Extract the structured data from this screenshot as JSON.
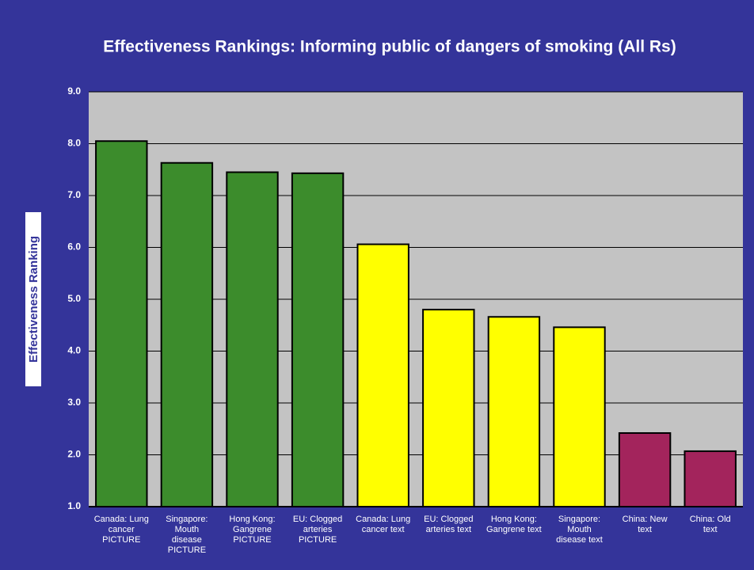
{
  "chart_data": {
    "type": "bar",
    "title": "Effectiveness Rankings: Informing public of dangers of smoking  (All Rs)",
    "y_label": "Effectiveness Ranking",
    "categories": [
      "Canada: Lung cancer PICTURE",
      "Singapore: Mouth disease PICTURE",
      "Hong Kong: Gangrene PICTURE",
      "EU: Clogged arteries PICTURE",
      "Canada: Lung cancer text",
      "EU: Clogged arteries text",
      "Hong Kong: Gangrene text",
      "Singapore: Mouth disease text",
      "China: New text",
      "China: Old text"
    ],
    "values": [
      8.05,
      7.63,
      7.45,
      7.43,
      6.06,
      4.8,
      4.66,
      4.46,
      2.42,
      2.07
    ],
    "colors": [
      "#3c8c2c",
      "#3c8c2c",
      "#3c8c2c",
      "#3c8c2c",
      "#ffff00",
      "#ffff00",
      "#ffff00",
      "#ffff00",
      "#a3245c",
      "#a3245c"
    ],
    "ylim": [
      1,
      9
    ],
    "yticks": [
      {
        "value": 1,
        "label": "1.0"
      },
      {
        "value": 2,
        "label": "2.0"
      },
      {
        "value": 3,
        "label": "3.0"
      },
      {
        "value": 4,
        "label": "4.0"
      },
      {
        "value": 5,
        "label": "5.0"
      },
      {
        "value": 6,
        "label": "6.0"
      },
      {
        "value": 7,
        "label": "7.0"
      },
      {
        "value": 8,
        "label": "8.0"
      },
      {
        "value": 9,
        "label": "9.0"
      }
    ],
    "grid": true
  }
}
